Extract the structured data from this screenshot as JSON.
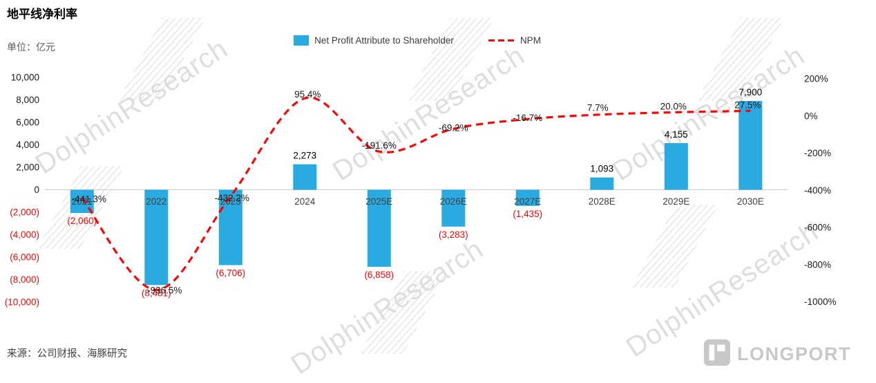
{
  "page": {
    "title": "地平线净利率",
    "unit_label": "单位：亿元",
    "source": "来源：公司财报、海豚研究",
    "brand": "LONGPORT",
    "watermark": "DolphinResearch"
  },
  "legend": {
    "bar_label": "Net Profit Attribute to Shareholder",
    "line_label": "NPM"
  },
  "chart_data": {
    "type": "combo-bar-line",
    "title": "地平线净利率",
    "unit": "亿元",
    "legend_position": "top",
    "grid": "zero-line-only",
    "negative_color": "#ff0000",
    "categories": [
      "2021",
      "2022",
      "2023",
      "2024",
      "2025E",
      "2026E",
      "2027E",
      "2028E",
      "2029E",
      "2030E"
    ],
    "series": [
      {
        "name": "Net Profit Attribute to Shareholder",
        "type": "bar",
        "axis": "left",
        "color": "#29abe2",
        "values": [
          -2060,
          -8481,
          -6706,
          2273,
          -6858,
          -3283,
          -1435,
          1093,
          4155,
          7900
        ],
        "labels": [
          "(2,060)",
          "(8,481)",
          "(6,706)",
          "2,273",
          "(6,858)",
          "(3,283)",
          "(1,435)",
          "1,093",
          "4,155",
          "7,900"
        ]
      },
      {
        "name": "NPM",
        "type": "line",
        "axis": "right",
        "style": "dashed",
        "color": "#fb0505",
        "values": [
          -441.3,
          -936.5,
          -432.2,
          95.4,
          -191.6,
          -69.2,
          -16.7,
          7.7,
          20.0,
          27.5
        ],
        "labels": [
          "-441.3%",
          "-936.5%",
          "-432.2%",
          "95.4%",
          "-191.6%",
          "-69.2%",
          "-16.7%",
          "7.7%",
          "20.0%",
          "27.5%"
        ]
      }
    ],
    "left_axis": {
      "range": [
        -10000,
        10000
      ],
      "ticks": [
        {
          "label": "10,000",
          "value": 10000
        },
        {
          "label": "8,000",
          "value": 8000
        },
        {
          "label": "6,000",
          "value": 6000
        },
        {
          "label": "4,000",
          "value": 4000
        },
        {
          "label": "2,000",
          "value": 2000
        },
        {
          "label": "0",
          "value": 0
        },
        {
          "label": "(2,000)",
          "value": -2000
        },
        {
          "label": "(4,000)",
          "value": -4000
        },
        {
          "label": "(6,000)",
          "value": -6000
        },
        {
          "label": "(8,000)",
          "value": -8000
        },
        {
          "label": "(10,000)",
          "value": -10000
        }
      ]
    },
    "right_axis": {
      "range": [
        -1000,
        200
      ],
      "ticks": [
        {
          "label": "200%",
          "value": 200
        },
        {
          "label": "0%",
          "value": 0
        },
        {
          "label": "-200%",
          "value": -200
        },
        {
          "label": "-400%",
          "value": -400
        },
        {
          "label": "-600%",
          "value": -600
        },
        {
          "label": "-800%",
          "value": -800
        },
        {
          "label": "-1000%",
          "value": -1000
        }
      ]
    }
  }
}
